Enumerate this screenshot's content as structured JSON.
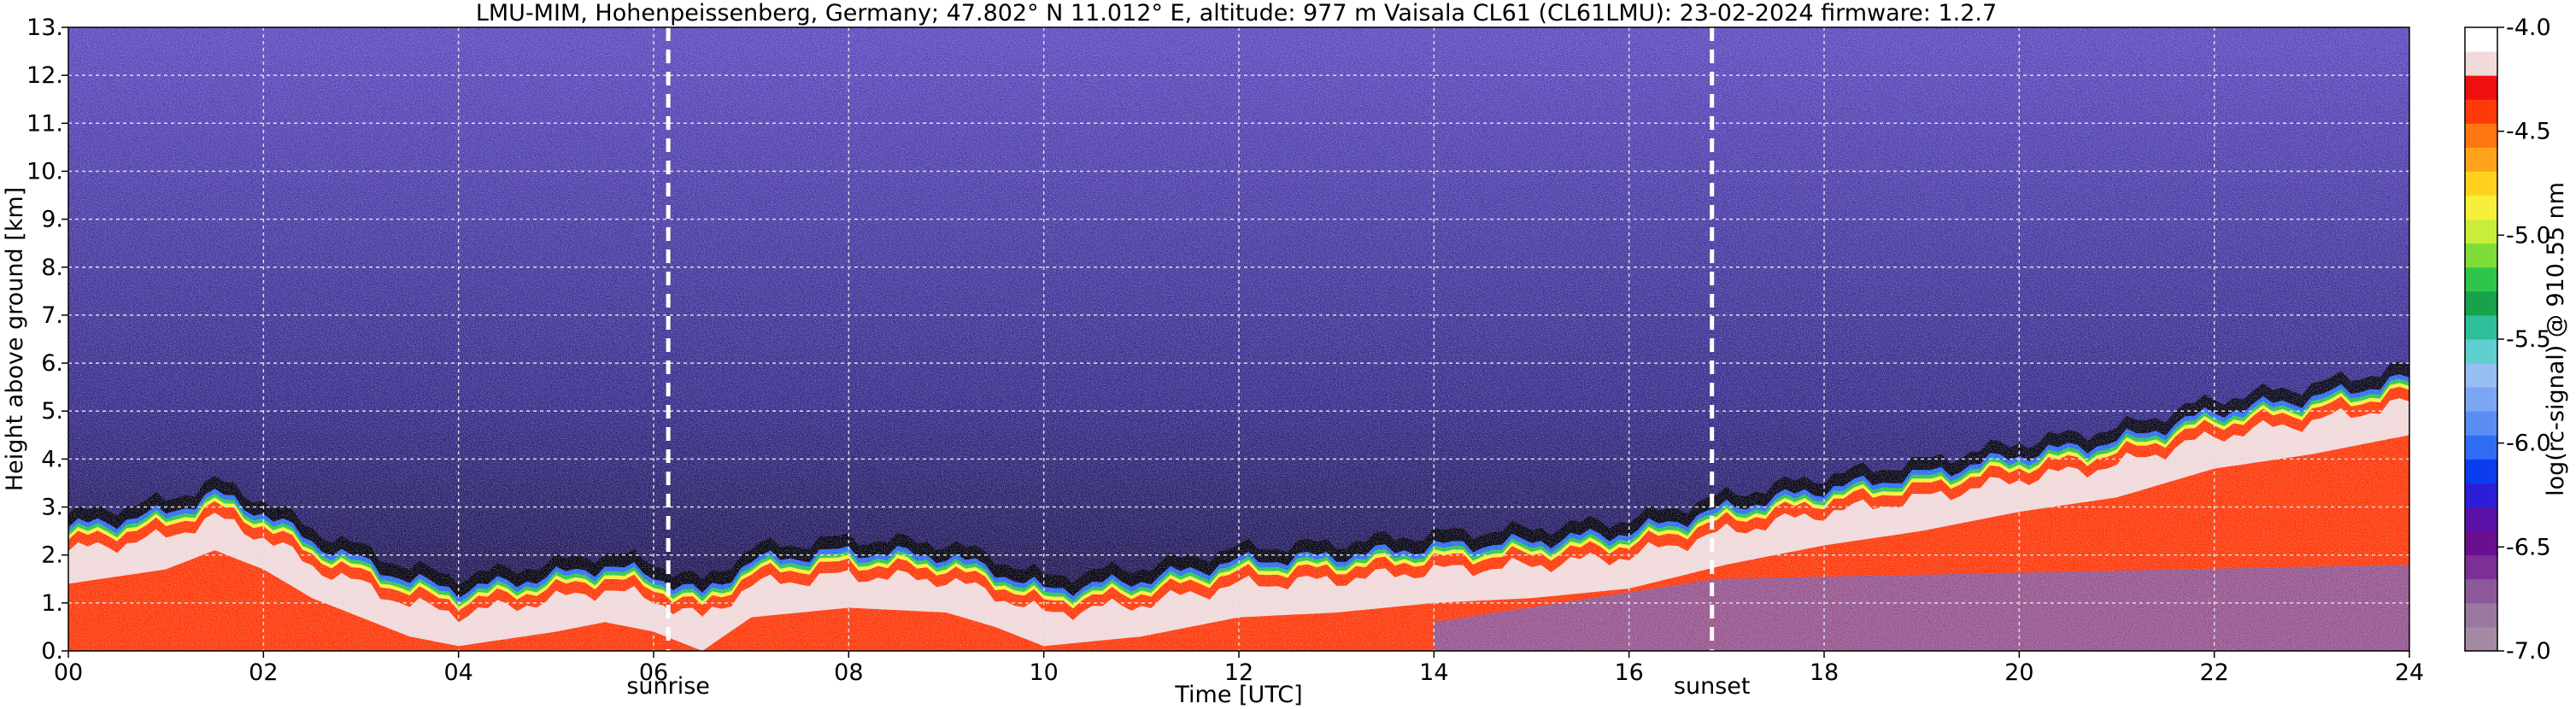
{
  "chart_data": {
    "type": "heatmap",
    "title": "LMU-MIM, Hohenpeissenberg, Germany; 47.802° N 11.012° E, altitude: 977 m    Vaisala CL61 (CL61LMU): 23-02-2024    firmware: 1.2.7",
    "xlabel": "Time [UTC]",
    "ylabel": "Height above ground [km]",
    "xlim": [
      0,
      24
    ],
    "ylim": [
      0,
      13
    ],
    "x_ticks": [
      "00",
      "02",
      "04",
      "06",
      "08",
      "10",
      "12",
      "14",
      "16",
      "18",
      "20",
      "22",
      "24"
    ],
    "x_tick_values": [
      0,
      2,
      4,
      6,
      8,
      10,
      12,
      14,
      16,
      18,
      20,
      22,
      24
    ],
    "y_ticks": [
      "0.",
      "1.",
      "2.",
      "3.",
      "4.",
      "5.",
      "6.",
      "7.",
      "8.",
      "9.",
      "10.",
      "11.",
      "12.",
      "13."
    ],
    "y_tick_values": [
      0,
      1,
      2,
      3,
      4,
      5,
      6,
      7,
      8,
      9,
      10,
      11,
      12,
      13
    ],
    "grid": true,
    "annotations": [
      {
        "label": "sunrise",
        "x": 6.15
      },
      {
        "label": "sunset",
        "x": 16.85
      }
    ],
    "colorbar": {
      "label": "log(rc-signal) @ 910.55 nm",
      "range": [
        -7.0,
        -4.0
      ],
      "ticks": [
        "-7.0",
        "-6.5",
        "-6.0",
        "-5.5",
        "-5.0",
        "-4.5",
        "-4.0"
      ],
      "tick_values": [
        -7.0,
        -6.5,
        -6.0,
        -5.5,
        -5.0,
        -4.5,
        -4.0
      ],
      "colors": [
        "#a58aa5",
        "#9a789f",
        "#8c5a9c",
        "#7e2f96",
        "#6a0f8f",
        "#5a12a8",
        "#2c1ed8",
        "#0b3cf0",
        "#2f6df5",
        "#5a8ef4",
        "#7ba6f2",
        "#97bdf3",
        "#5fcfcf",
        "#2fbf9a",
        "#18a24a",
        "#2ec64a",
        "#7edd3a",
        "#c8ee3a",
        "#f6f03a",
        "#ffd21e",
        "#ffa41a",
        "#ff7612",
        "#ff3a0a",
        "#ee1010",
        "#f2dada",
        "#ffffff"
      ]
    },
    "aerosol_layer_top_km": [
      [
        0,
        2.3
      ],
      [
        1,
        2.6
      ],
      [
        1.5,
        3.0
      ],
      [
        2,
        2.6
      ],
      [
        2.5,
        2.0
      ],
      [
        3,
        1.6
      ],
      [
        3.5,
        1.2
      ],
      [
        4,
        1.0
      ],
      [
        5,
        1.3
      ],
      [
        5.5,
        1.5
      ],
      [
        6,
        1.3
      ],
      [
        6.5,
        0.9
      ],
      [
        7,
        1.6
      ],
      [
        8,
        1.8
      ],
      [
        9,
        1.7
      ],
      [
        9.5,
        1.4
      ],
      [
        10,
        1.0
      ],
      [
        11,
        1.2
      ],
      [
        12,
        1.6
      ],
      [
        13,
        1.7
      ],
      [
        14,
        1.9
      ],
      [
        15,
        2.0
      ],
      [
        16,
        2.2
      ],
      [
        17,
        2.7
      ],
      [
        18,
        3.1
      ],
      [
        19,
        3.4
      ],
      [
        20,
        3.8
      ],
      [
        21,
        4.1
      ],
      [
        22,
        4.7
      ],
      [
        23,
        5.0
      ],
      [
        24,
        5.4
      ]
    ]
  }
}
